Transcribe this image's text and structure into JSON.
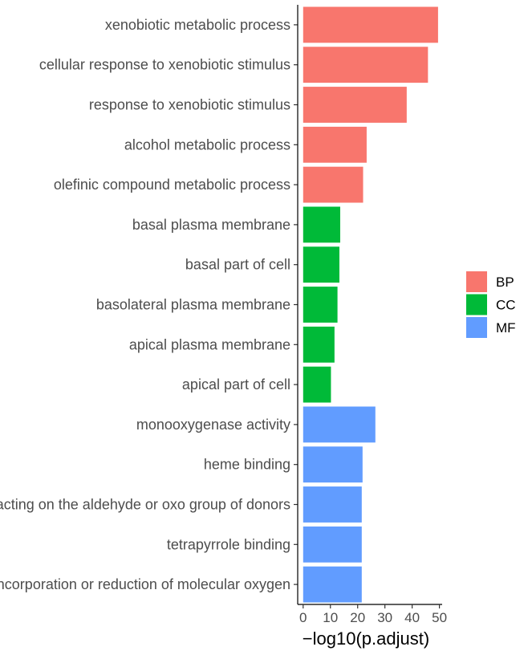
{
  "chart_data": {
    "type": "bar",
    "orientation": "horizontal",
    "categories": [
      "xenobiotic metabolic process",
      "cellular response to xenobiotic stimulus",
      "response to xenobiotic stimulus",
      "alcohol metabolic process",
      "olefinic compound metabolic process",
      "basal plasma membrane",
      "basal part of cell",
      "basolateral plasma membrane",
      "apical plasma membrane",
      "apical part of cell",
      "monooxygenase activity",
      "heme binding",
      "oxidoreductase activity, acting on the aldehyde or oxo group of donors",
      "tetrapyrrole binding",
      "oxidoreductase activity, acting on paired donors, with incorporation or reduction of molecular oxygen"
    ],
    "values": [
      49.5,
      45.8,
      38.0,
      23.3,
      22.0,
      13.6,
      13.3,
      12.6,
      11.5,
      10.2,
      26.5,
      21.8,
      21.5,
      21.5,
      21.5
    ],
    "groups": [
      "BP",
      "BP",
      "BP",
      "BP",
      "BP",
      "CC",
      "CC",
      "CC",
      "CC",
      "CC",
      "MF",
      "MF",
      "MF",
      "MF",
      "MF"
    ],
    "legend": [
      {
        "name": "BP",
        "color": "#F8766D"
      },
      {
        "name": "CC",
        "color": "#00BA38"
      },
      {
        "name": "MF",
        "color": "#619CFF"
      }
    ],
    "legend_position": "right",
    "xlabel": "−log10(p.adjust)",
    "ylabel": "",
    "xlim": [
      -2,
      51
    ],
    "xticks": [
      0,
      10,
      20,
      30,
      40,
      50
    ],
    "grid": false
  }
}
